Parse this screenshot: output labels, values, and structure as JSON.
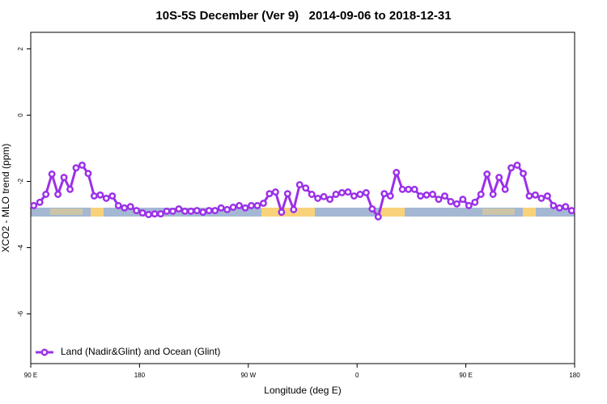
{
  "chart_data": {
    "type": "line",
    "title": "10S-5S December (Ver 9)   2014-09-06 to 2018-12-31",
    "x_label": "Longitude (deg E)",
    "y_label": "XCO2 - MLO trend (ppm)",
    "x": [
      92.5,
      97.5,
      102.5,
      107.5,
      112.5,
      117.5,
      122.5,
      127.5,
      132.5,
      137.5,
      142.5,
      147.5,
      152.5,
      157.5,
      162.5,
      167.5,
      172.5,
      177.5,
      182.5,
      187.5,
      192.5,
      197.5,
      202.5,
      207.5,
      212.5,
      217.5,
      222.5,
      227.5,
      232.5,
      237.5,
      242.5,
      247.5,
      252.5,
      257.5,
      262.5,
      267.5,
      272.5,
      277.5,
      282.5,
      287.5,
      292.5,
      297.5,
      302.5,
      307.5,
      312.5,
      317.5,
      322.5,
      327.5,
      332.5,
      337.5,
      342.5,
      347.5,
      352.5,
      357.5,
      362.5,
      367.5,
      372.5,
      377.5,
      382.5,
      387.5,
      392.5,
      397.5,
      402.5,
      407.5,
      412.5,
      417.5,
      422.5,
      427.5,
      432.5,
      437.5,
      442.5,
      447.5,
      452.5,
      457.5,
      462.5,
      467.5,
      472.5,
      477.5,
      482.5,
      487.5,
      492.5,
      497.5,
      502.5,
      507.5,
      512.5,
      517.5,
      522.5,
      527.5,
      532.5,
      537.5
    ],
    "series": [
      {
        "name": "Land (Nadir&Glint) and Ocean (Glint)",
        "color": "#9b30e8",
        "values": [
          -2.73,
          -2.63,
          -2.39,
          -1.78,
          -2.39,
          -1.88,
          -2.24,
          -1.59,
          -1.51,
          -1.76,
          -2.44,
          -2.41,
          -2.51,
          -2.44,
          -2.73,
          -2.8,
          -2.76,
          -2.88,
          -2.95,
          -3.0,
          -2.98,
          -2.98,
          -2.9,
          -2.9,
          -2.83,
          -2.9,
          -2.9,
          -2.88,
          -2.93,
          -2.88,
          -2.88,
          -2.8,
          -2.85,
          -2.78,
          -2.73,
          -2.8,
          -2.73,
          -2.73,
          -2.66,
          -2.37,
          -2.32,
          -2.93,
          -2.37,
          -2.85,
          -2.1,
          -2.2,
          -2.39,
          -2.51,
          -2.46,
          -2.54,
          -2.39,
          -2.34,
          -2.32,
          -2.44,
          -2.39,
          -2.34,
          -2.83,
          -3.07,
          -2.37,
          -2.44,
          -1.73,
          -2.24,
          -2.24,
          -2.24,
          -2.44,
          -2.41,
          -2.39,
          -2.54,
          -2.44,
          -2.61,
          -2.68,
          -2.54,
          -2.73,
          -2.63,
          -2.39,
          -1.78,
          -2.39,
          -1.88,
          -2.24,
          -1.59,
          -1.51,
          -1.76,
          -2.44,
          -2.41,
          -2.51,
          -2.44,
          -2.73,
          -2.8,
          -2.76,
          -2.88
        ]
      }
    ],
    "xlim": [
      90,
      540
    ],
    "xticks": [
      {
        "value": 90,
        "label": "90 E"
      },
      180,
      {
        "value": 270,
        "label": "90 W"
      },
      {
        "value": 360,
        "label": "0"
      },
      {
        "value": 450,
        "label": "90 E"
      },
      {
        "value": 540,
        "label": "180"
      }
    ],
    "ylim": [
      -7.5,
      2.5
    ],
    "yticks": [
      2,
      0,
      -2,
      -4,
      -6
    ],
    "legend": "bottom-left"
  }
}
